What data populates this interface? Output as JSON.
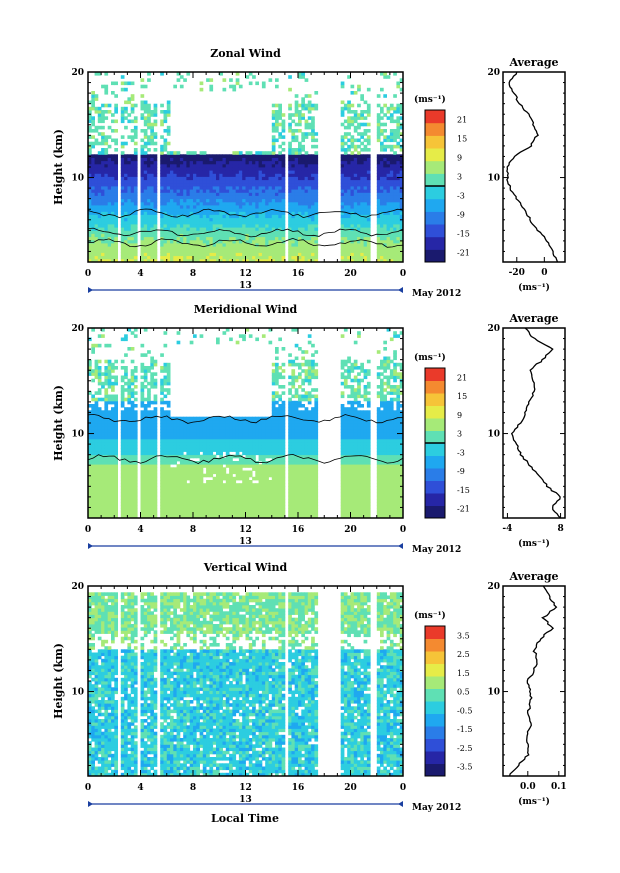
{
  "x_axis_label": "Local Time",
  "date_label": "May 2012",
  "day_label": "13",
  "colors": {
    "palette": [
      "#1a1a6e",
      "#2626a6",
      "#2f4fd8",
      "#2a7de8",
      "#1fa8f0",
      "#2ccde0",
      "#5fe0b4",
      "#a6ea78",
      "#e6ec48",
      "#f6c438",
      "#f48a30",
      "#ea3a2a"
    ]
  },
  "chart_data": [
    {
      "type": "heatmap",
      "title": "Zonal Wind",
      "ylabel": "Height (km)",
      "xlabel": "Local Time",
      "x_ticks": [
        "0",
        "4",
        "8",
        "12",
        "16",
        "20",
        "0"
      ],
      "xlim": [
        0,
        24
      ],
      "y_ticks": [
        "20",
        "10"
      ],
      "ylim": [
        2,
        20
      ],
      "colorbar_unit": "(ms⁻¹)",
      "colorbar_ticks": [
        "21",
        "15",
        "9",
        "3",
        "-3",
        "-9",
        "-15",
        "-21"
      ],
      "colorbar_range": [
        -24,
        24
      ],
      "profile": {
        "title": "Average",
        "x_ticks": [
          "-20",
          "0"
        ],
        "xlim": [
          -30,
          15
        ],
        "xlabel": "(ms⁻¹)",
        "y_ticks": [
          "20",
          "10"
        ],
        "height_km": [
          2,
          3,
          4,
          5,
          6,
          7,
          8,
          9,
          10,
          11,
          12,
          13,
          14,
          15,
          16,
          17,
          18,
          19,
          20
        ],
        "value": [
          10,
          6,
          2,
          -5,
          -10,
          -15,
          -20,
          -25,
          -27,
          -27,
          -22,
          -10,
          -5,
          -8,
          -12,
          -18,
          -22,
          -26,
          -20
        ]
      }
    },
    {
      "type": "heatmap",
      "title": "Meridional Wind",
      "ylabel": "Height (km)",
      "xlabel": "Local Time",
      "x_ticks": [
        "0",
        "4",
        "8",
        "12",
        "16",
        "20",
        "0"
      ],
      "xlim": [
        0,
        24
      ],
      "y_ticks": [
        "20",
        "10"
      ],
      "ylim": [
        2,
        20
      ],
      "colorbar_unit": "(ms⁻¹)",
      "colorbar_ticks": [
        "21",
        "15",
        "9",
        "3",
        "-3",
        "-9",
        "-15",
        "-21"
      ],
      "colorbar_range": [
        -24,
        24
      ],
      "profile": {
        "title": "Average",
        "x_ticks": [
          "-4",
          "8"
        ],
        "xlim": [
          -5,
          9
        ],
        "xlabel": "(ms⁻¹)",
        "y_ticks": [
          "20",
          "10"
        ],
        "height_km": [
          2,
          3,
          4,
          5,
          6,
          7,
          8,
          9,
          10,
          11,
          12,
          13,
          14,
          15,
          16,
          17,
          18,
          19,
          20
        ],
        "value": [
          8,
          6,
          8,
          5,
          3,
          1,
          -1,
          -2,
          -3,
          -1,
          0,
          1,
          2,
          2,
          1,
          4,
          6,
          2,
          0
        ]
      }
    },
    {
      "type": "heatmap",
      "title": "Vertical Wind",
      "ylabel": "Height (km)",
      "xlabel": "Local Time",
      "x_ticks": [
        "0",
        "4",
        "8",
        "12",
        "16",
        "20",
        "0"
      ],
      "xlim": [
        0,
        24
      ],
      "y_ticks": [
        "20",
        "10"
      ],
      "ylim": [
        2,
        20
      ],
      "colorbar_unit": "(ms⁻¹)",
      "colorbar_ticks": [
        "3.5",
        "2.5",
        "1.5",
        "0.5",
        "-0.5",
        "-1.5",
        "-2.5",
        "-3.5"
      ],
      "colorbar_range": [
        -4,
        4
      ],
      "profile": {
        "title": "Average",
        "x_ticks": [
          "0.0",
          "0.1"
        ],
        "xlim": [
          -0.08,
          0.12
        ],
        "xlabel": "(ms⁻¹)",
        "y_ticks": [
          "20",
          "10"
        ],
        "height_km": [
          2,
          3,
          4,
          5,
          6,
          7,
          8,
          9,
          10,
          11,
          12,
          13,
          14,
          15,
          16,
          17,
          18,
          19,
          20
        ],
        "value": [
          -0.06,
          -0.03,
          0.0,
          0.0,
          0.0,
          0.01,
          0.0,
          0.01,
          0.01,
          0.0,
          0.02,
          0.03,
          0.02,
          0.04,
          0.08,
          0.05,
          0.09,
          0.07,
          0.05
        ]
      }
    }
  ]
}
